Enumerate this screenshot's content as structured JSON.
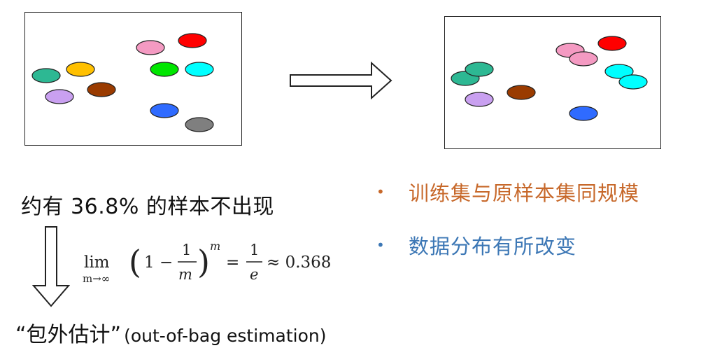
{
  "left_panel": {
    "points": [
      {
        "color": "#f49ac2"
      },
      {
        "color": "#ff0000"
      },
      {
        "color": "#2db893"
      },
      {
        "color": "#ffc000"
      },
      {
        "color": "#00e600"
      },
      {
        "color": "#00ffff"
      },
      {
        "color": "#c9a0f0"
      },
      {
        "color": "#9a3b00"
      },
      {
        "color": "#2f6bff"
      },
      {
        "color": "#7f7f7f"
      }
    ]
  },
  "right_panel": {
    "points": [
      {
        "color": "#f49ac2"
      },
      {
        "color": "#f49ac2"
      },
      {
        "color": "#ff0000"
      },
      {
        "color": "#2db893"
      },
      {
        "color": "#2db893"
      },
      {
        "color": "#00ffff"
      },
      {
        "color": "#00ffff"
      },
      {
        "color": "#c9a0f0"
      },
      {
        "color": "#9a3b00"
      },
      {
        "color": "#2f6bff"
      }
    ]
  },
  "stat_text": "约有 36.8% 的样本不出现",
  "formula": {
    "lim": "lim",
    "limit_sub": "m→∞",
    "open_paren": "(",
    "one": "1",
    "minus": "−",
    "frac_num": "1",
    "frac_den": "m",
    "close_paren": ")",
    "power": "m",
    "equals": "=",
    "rhs_num": "1",
    "rhs_den": "e",
    "approx": "≈ 0.368"
  },
  "oob": {
    "chinese": "“包外估计”",
    "english": "(out-of-bag estimation)"
  },
  "bullets": [
    {
      "dot": "•",
      "text": "训练集与原样本集同规模",
      "color": "#c7682a"
    },
    {
      "dot": "•",
      "text": "数据分布有所改变",
      "color": "#3c77b5"
    }
  ]
}
